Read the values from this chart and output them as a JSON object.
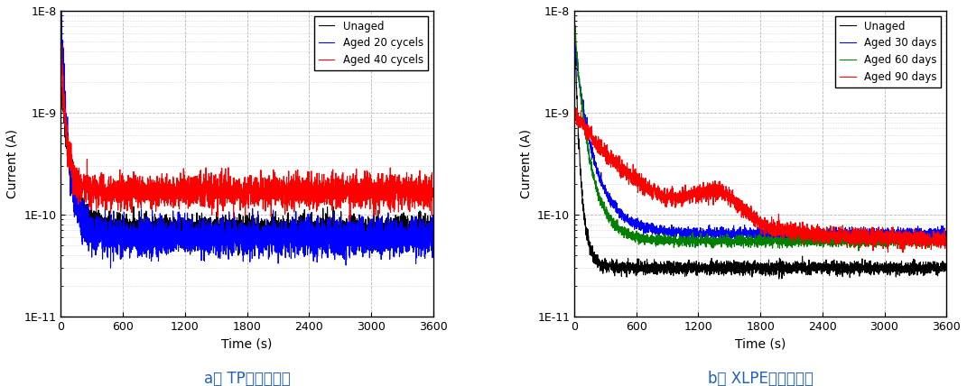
{
  "fig_width": 10.71,
  "fig_height": 4.28,
  "dpi": 100,
  "left_title": "a） TP모델케이블",
  "right_title": "b） XLPE모델케이블",
  "ylabel": "Current (A)",
  "xlabel": "Time (s)",
  "xlim": [
    0,
    3600
  ],
  "ylim_low": 1e-11,
  "ylim_high": 1e-08,
  "xticks": [
    0,
    600,
    1200,
    1800,
    2400,
    3000,
    3600
  ],
  "left_legend": [
    "Unaged",
    "Aged 20 cycels",
    "Aged 40 cycels"
  ],
  "left_colors": [
    "#000000",
    "#0000ff",
    "#ff0000"
  ],
  "right_legend": [
    "Unaged",
    "Aged 30 days",
    "Aged 60 days",
    "Aged 90 days"
  ],
  "right_colors": [
    "#000000",
    "#0000ff",
    "#008000",
    "#ff0000"
  ],
  "bg_color": "#ffffff",
  "grid_color": "#b0b0b0",
  "title_color": "#1f5fc8",
  "seed": 7
}
